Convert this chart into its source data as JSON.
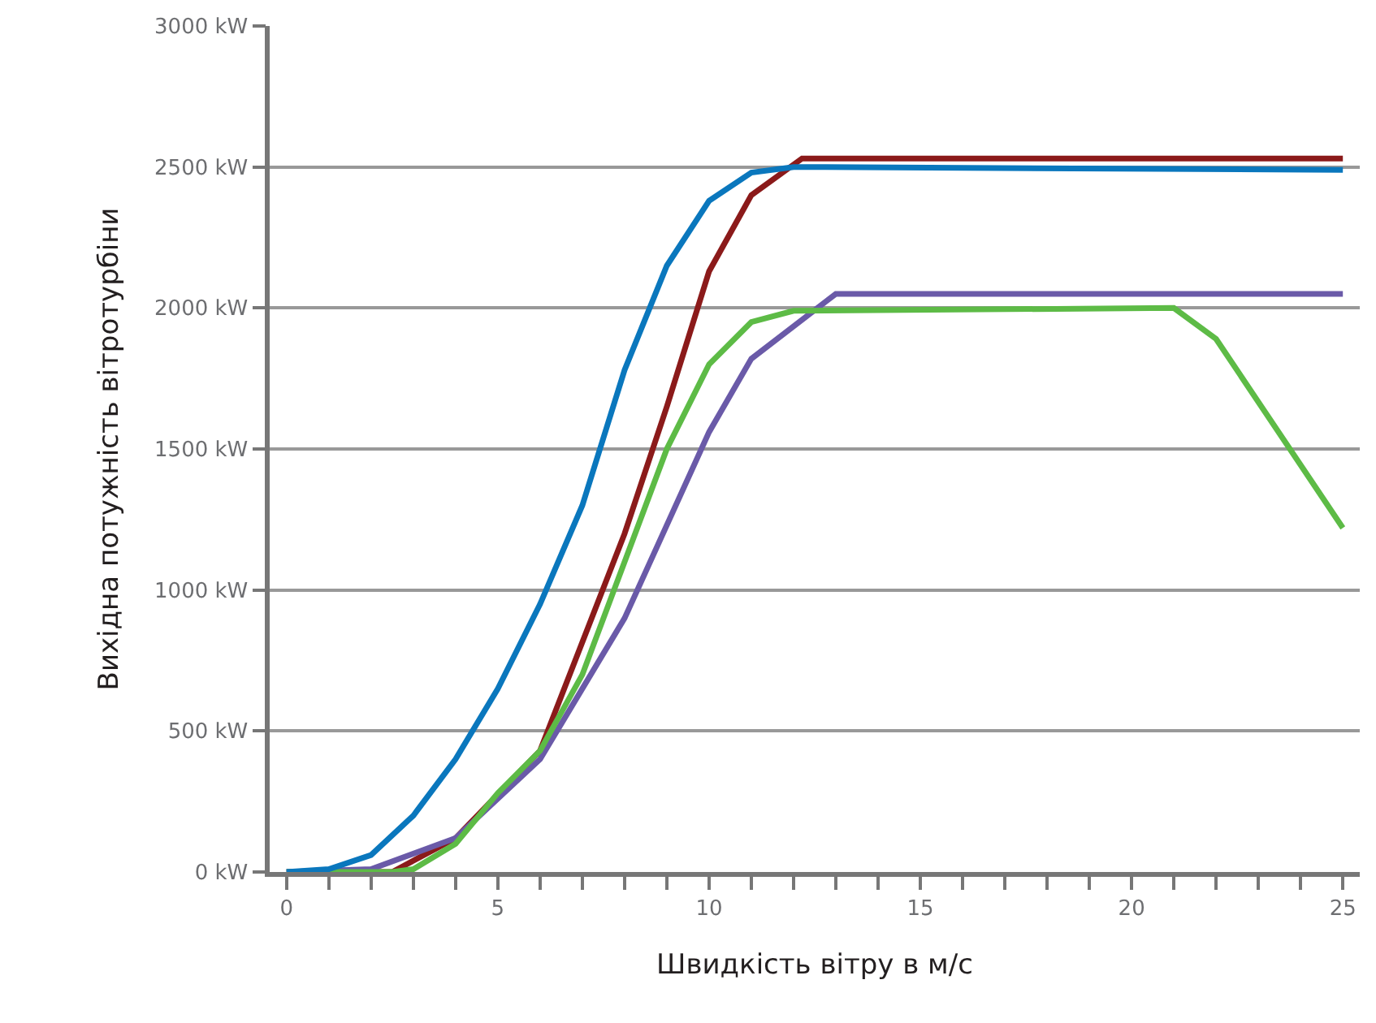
{
  "chart_data": {
    "type": "line",
    "xlabel": "Швидкість вітру в м/с",
    "ylabel": "Вихідна потужність вітротурбіни",
    "xlim": [
      -0.4,
      25.4
    ],
    "ylim": [
      0,
      3000
    ],
    "xticks": [
      0,
      {
        "value": 1,
        "label": null
      },
      {
        "value": 2,
        "label": null
      },
      {
        "value": 3,
        "label": null
      },
      {
        "value": 4,
        "label": null
      },
      5,
      {
        "value": 6,
        "label": null
      },
      {
        "value": 7,
        "label": null
      },
      {
        "value": 8,
        "label": null
      },
      {
        "value": 9,
        "label": null
      },
      10,
      {
        "value": 11,
        "label": null
      },
      {
        "value": 12,
        "label": null
      },
      {
        "value": 13,
        "label": null
      },
      {
        "value": 14,
        "label": null
      },
      15,
      {
        "value": 16,
        "label": null
      },
      {
        "value": 17,
        "label": null
      },
      {
        "value": 18,
        "label": null
      },
      {
        "value": 19,
        "label": null
      },
      20,
      {
        "value": 21,
        "label": null
      },
      {
        "value": 22,
        "label": null
      },
      {
        "value": 23,
        "label": null
      },
      {
        "value": 24,
        "label": null
      },
      25
    ],
    "yticks": [
      {
        "value": 0,
        "label": "0 kW"
      },
      {
        "value": 500,
        "label": "500 kW"
      },
      {
        "value": 1000,
        "label": "1000 kW"
      },
      {
        "value": 1500,
        "label": "1500 kW"
      },
      {
        "value": 2000,
        "label": "2000 kW"
      },
      {
        "value": 2500,
        "label": "2500 kW"
      },
      {
        "value": 3000,
        "label": "3000 kW"
      }
    ],
    "grid": "y",
    "marker": "none",
    "line_style": "solid",
    "series": [
      {
        "color": "#8b1a1a",
        "x": [
          0,
          2.5,
          4,
          6,
          8,
          9,
          10,
          11,
          12.2,
          25
        ],
        "values": [
          0,
          0,
          120,
          430,
          1200,
          1650,
          2130,
          2400,
          2530,
          2530
        ]
      },
      {
        "color": "#6a5aa8",
        "x": [
          0,
          2,
          4,
          6,
          8,
          10,
          11,
          13,
          25
        ],
        "values": [
          0,
          10,
          120,
          400,
          900,
          1560,
          1820,
          2050,
          2050
        ]
      },
      {
        "color": "#5dbb46",
        "x": [
          0,
          2.5,
          3,
          4,
          5,
          6,
          7,
          8,
          9,
          10,
          11,
          12,
          21,
          22,
          25
        ],
        "values": [
          0,
          0,
          10,
          100,
          280,
          430,
          700,
          1100,
          1500,
          1800,
          1950,
          1990,
          2000,
          1890,
          1220
        ]
      },
      {
        "color": "#0a77bd",
        "x": [
          0,
          1,
          2,
          3,
          4,
          5,
          6,
          7,
          8,
          9,
          10,
          11,
          12,
          25
        ],
        "values": [
          0,
          10,
          60,
          200,
          400,
          650,
          950,
          1300,
          1780,
          2150,
          2380,
          2480,
          2500,
          2490
        ]
      }
    ]
  }
}
